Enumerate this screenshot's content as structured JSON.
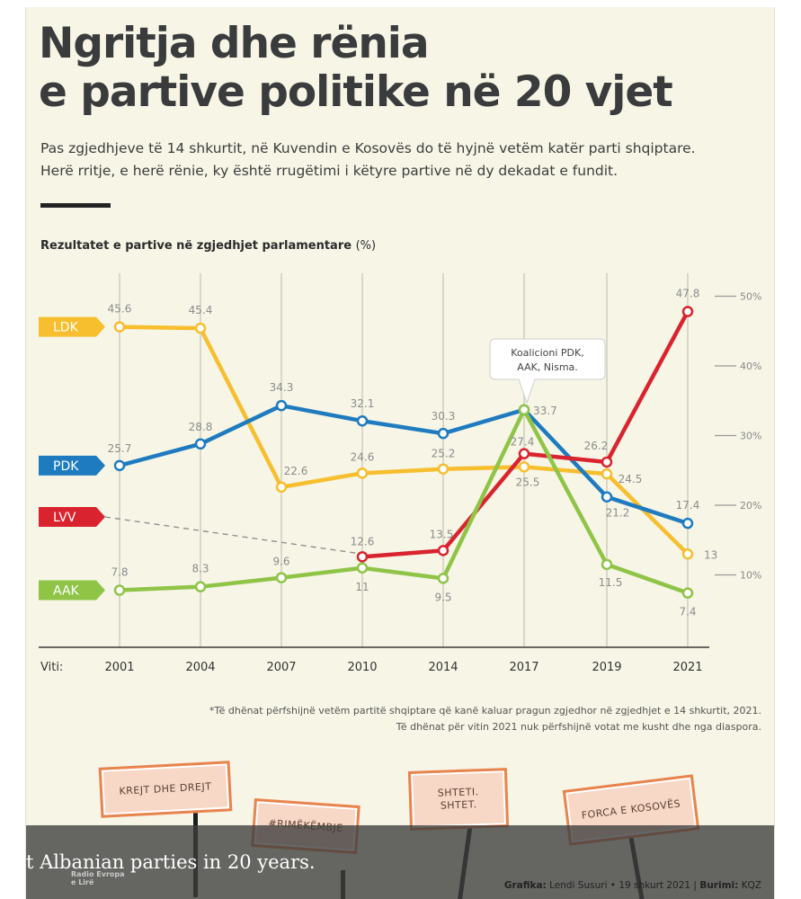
{
  "header": {
    "title_line1": "Ngritja dhe rënia",
    "title_line2": "e partive politike në 20 vjet",
    "subtitle_line1": "Pas zgjedhjeve të 14 shkurtit, në Kuvendin e Kosovës do të hyjnë vetëm katër parti shqiptare.",
    "subtitle_line2": "Herë rritje, e herë rënie, ky është rrugëtimi i këtyre partive në dy dekadat e fundit."
  },
  "chart_heading": {
    "main": "Rezultatet e partive në zgjedhjet parlamentare",
    "unit": "(%)"
  },
  "chart_data": {
    "type": "line",
    "x_axis_label": "Viti:",
    "categories": [
      "2001",
      "2004",
      "2007",
      "2010",
      "2014",
      "2017",
      "2019",
      "2021"
    ],
    "ylim": [
      0,
      52
    ],
    "yticks": [
      "10%",
      "20%",
      "30%",
      "40%",
      "50%"
    ],
    "grid": "vertical",
    "series": [
      {
        "name": "LDK",
        "color": "#f7be2e",
        "values": [
          45.6,
          45.4,
          22.6,
          24.6,
          25.2,
          25.5,
          24.5,
          13
        ],
        "labels": [
          "45.6",
          "45.4",
          "22.6",
          "24.6",
          "25.2",
          "25.5",
          "24.5",
          "13"
        ]
      },
      {
        "name": "PDK",
        "color": "#1f7bbf",
        "values": [
          25.7,
          28.8,
          34.3,
          32.1,
          30.3,
          33.7,
          21.2,
          17.4
        ],
        "labels": [
          "25.7",
          "28.8",
          "34.3",
          "32.1",
          "30.3",
          "33.7",
          "21.2",
          "17.4"
        ]
      },
      {
        "name": "LVV",
        "color": "#d9232e",
        "values": [
          null,
          null,
          null,
          12.6,
          13.5,
          27.4,
          26.2,
          47.8
        ],
        "labels": [
          "",
          "",
          "",
          "12.6",
          "13.5",
          "27.4",
          "26.2",
          "47.8"
        ]
      },
      {
        "name": "AAK",
        "color": "#8fc447",
        "values": [
          7.8,
          8.3,
          9.6,
          11,
          9.5,
          33.7,
          11.5,
          7.4
        ],
        "labels": [
          "7.8",
          "8.3",
          "9.6",
          "11",
          "9.5",
          "",
          "11.5",
          "7.4"
        ]
      }
    ],
    "annotation": {
      "line1": "Koalicioni PDK,",
      "line2": "AAK, Nisma.",
      "year": "2017"
    }
  },
  "footnote": {
    "line1": "*Të dhënat përfshijnë vetëm partitë shqiptare që kanë kaluar pragun zgjedhor në zgjedhjet e 14 shkurtit, 2021.",
    "line2": "Të dhënat për vitin 2021 nuk përfshijnë votat me kusht dhe nga diaspora."
  },
  "signs": {
    "sign1": "KREJT DHE DREJT",
    "sign2": "#RIMËKËMBJE",
    "sign3_line1": "SHTETI.",
    "sign3_line2": "SHTET.",
    "sign4": "FORCA E KOSOVËS"
  },
  "caption": {
    "text": "t Albanian parties in 20 years.",
    "logo_line1": "Radio Evropa",
    "logo_line2": "e Lirë",
    "credit_label1": "Grafika:",
    "credit_value1": "Lendi Susuri • 19 shkurt 2021 |",
    "credit_label2": "Burimi:",
    "credit_value2": "KQZ"
  },
  "colors": {
    "background": "#f6f5e6",
    "text": "#3a3b3c",
    "sign_border": "#e8844e"
  }
}
